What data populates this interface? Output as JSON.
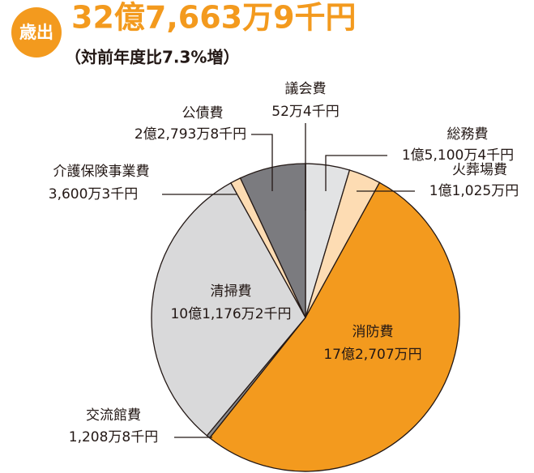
{
  "chart_data": {
    "type": "pie",
    "badge": "歳出",
    "title": "32億7,663万9千円",
    "subtitle": "（対前年度比7.3%増）",
    "categories": [
      "議会費",
      "総務費",
      "火葬場費",
      "消防費",
      "交流館費",
      "清掃費",
      "介護保険事業費",
      "公債費"
    ],
    "values": [
      524000,
      151004000,
      110250000,
      1727070000,
      12088000,
      1011762000,
      36003000,
      227938000
    ],
    "value_labels": [
      "52万4千円",
      "1億5,100万4千円",
      "1億1,025万円",
      "17億2,707万円",
      "1,208万8千円",
      "10億1,176万2千円",
      "3,600万3千円",
      "2億2,793万8千円"
    ],
    "colors": [
      "#e6e6e6",
      "#e2e3e4",
      "#fddcb3",
      "#f39a1e",
      "#8a8a8c",
      "#d9d9da",
      "#fddcb3",
      "#7b7b7f"
    ]
  }
}
